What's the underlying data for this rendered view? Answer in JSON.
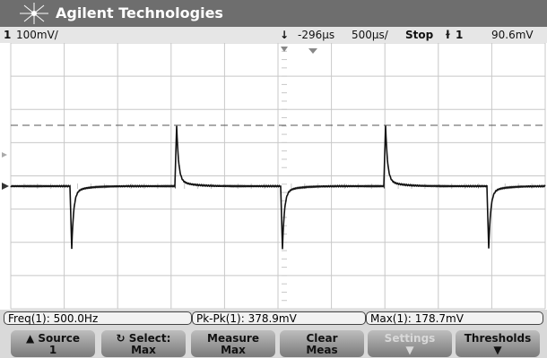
{
  "header": {
    "brand": "Agilent Technologies"
  },
  "status": {
    "channel": "1",
    "scale": "100mV/",
    "trigger_position": "-296µs",
    "timebase": "500µs/",
    "run_state": "Stop",
    "trigger_source": "1",
    "trigger_level": "90.6mV"
  },
  "measurements": [
    {
      "label": "Freq(1):",
      "value": "500.0Hz"
    },
    {
      "label": "Pk-Pk(1):",
      "value": "378.9mV"
    },
    {
      "label": "Max(1):",
      "value": "178.7mV"
    }
  ],
  "softkeys": [
    {
      "label": "Source",
      "value": "1"
    },
    {
      "label": "Select:",
      "value": "Max"
    },
    {
      "label": "Measure",
      "value": "Max"
    },
    {
      "label": "Clear",
      "value": "Meas"
    },
    {
      "label": "Settings"
    },
    {
      "label": "Thresholds"
    }
  ]
}
